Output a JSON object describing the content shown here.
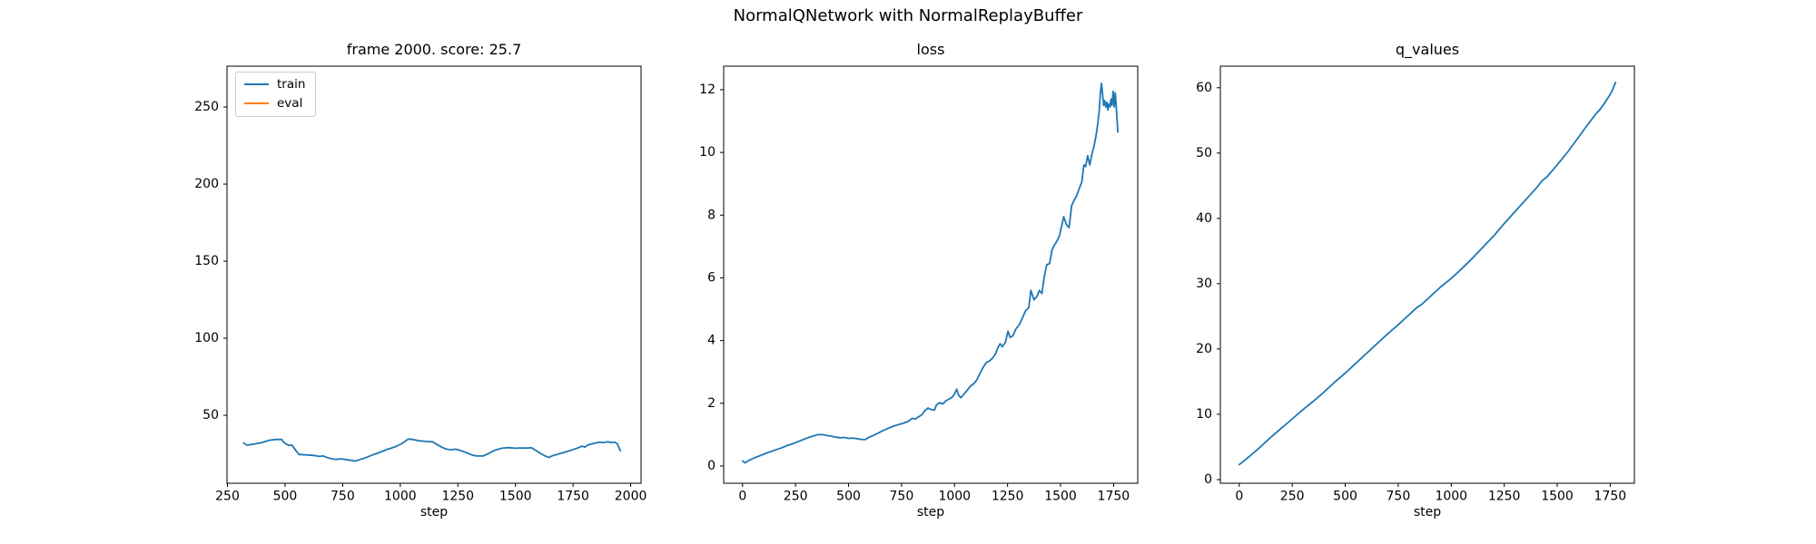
{
  "figure": {
    "suptitle": "NormalQNetwork with NormalReplayBuffer",
    "background_color": "#ffffff",
    "text_color": "#000000",
    "spine_color": "#000000",
    "accent_blue": "#1f77b4",
    "accent_orange": "#ff7f0e"
  },
  "chart_data": [
    {
      "type": "line",
      "title": "frame 2000. score: 25.7",
      "xlabel": "step",
      "grid": false,
      "xlim": [
        248,
        2045
      ],
      "ylim": [
        5.9,
        276.5
      ],
      "xticks": [
        250,
        500,
        750,
        1000,
        1250,
        1500,
        1750,
        2000
      ],
      "yticks": [
        50,
        100,
        150,
        200,
        250
      ],
      "legend": {
        "position": "upper-left",
        "entries": [
          {
            "label": "train",
            "color": "#1f77b4"
          },
          {
            "label": "eval",
            "color": "#ff7f0e"
          }
        ]
      },
      "series": [
        {
          "name": "train",
          "color": "#1f77b4",
          "points": [
            [
              320,
              32.0
            ],
            [
              335,
              30.6
            ],
            [
              365,
              31.3
            ],
            [
              400,
              32.3
            ],
            [
              430,
              33.8
            ],
            [
              460,
              34.3
            ],
            [
              485,
              34.4
            ],
            [
              495,
              32.3
            ],
            [
              515,
              30.5
            ],
            [
              530,
              30.6
            ],
            [
              545,
              27.5
            ],
            [
              560,
              24.6
            ],
            [
              590,
              24.3
            ],
            [
              620,
              24.0
            ],
            [
              650,
              23.3
            ],
            [
              665,
              23.6
            ],
            [
              690,
              22.2
            ],
            [
              720,
              21.4
            ],
            [
              745,
              21.7
            ],
            [
              775,
              21.0
            ],
            [
              805,
              20.3
            ],
            [
              820,
              21.0
            ],
            [
              850,
              22.5
            ],
            [
              880,
              24.3
            ],
            [
              905,
              25.6
            ],
            [
              920,
              26.5
            ],
            [
              940,
              27.7
            ],
            [
              960,
              28.6
            ],
            [
              985,
              30.0
            ],
            [
              1005,
              31.5
            ],
            [
              1020,
              33.0
            ],
            [
              1035,
              34.6
            ],
            [
              1055,
              34.3
            ],
            [
              1080,
              33.5
            ],
            [
              1110,
              33.0
            ],
            [
              1140,
              32.8
            ],
            [
              1160,
              31.0
            ],
            [
              1180,
              29.3
            ],
            [
              1200,
              28.0
            ],
            [
              1220,
              27.6
            ],
            [
              1240,
              28.0
            ],
            [
              1260,
              27.2
            ],
            [
              1290,
              25.6
            ],
            [
              1310,
              24.3
            ],
            [
              1330,
              23.6
            ],
            [
              1360,
              23.6
            ],
            [
              1385,
              25.3
            ],
            [
              1410,
              27.3
            ],
            [
              1440,
              28.6
            ],
            [
              1470,
              29.0
            ],
            [
              1500,
              28.6
            ],
            [
              1520,
              28.8
            ],
            [
              1545,
              28.7
            ],
            [
              1570,
              28.9
            ],
            [
              1585,
              27.5
            ],
            [
              1600,
              26.0
            ],
            [
              1625,
              23.9
            ],
            [
              1645,
              22.6
            ],
            [
              1660,
              23.7
            ],
            [
              1690,
              25.0
            ],
            [
              1720,
              26.3
            ],
            [
              1745,
              27.5
            ],
            [
              1770,
              28.8
            ],
            [
              1790,
              30.0
            ],
            [
              1800,
              29.3
            ],
            [
              1815,
              30.7
            ],
            [
              1840,
              31.8
            ],
            [
              1865,
              32.6
            ],
            [
              1880,
              32.2
            ],
            [
              1900,
              32.8
            ],
            [
              1915,
              32.3
            ],
            [
              1930,
              32.6
            ],
            [
              1942,
              31.5
            ],
            [
              1955,
              27.0
            ]
          ]
        },
        {
          "name": "eval",
          "color": "#ff7f0e",
          "points": []
        }
      ]
    },
    {
      "type": "line",
      "title": "loss",
      "xlabel": "step",
      "grid": false,
      "xlim": [
        -89,
        1864
      ],
      "ylim": [
        -0.55,
        12.75
      ],
      "xticks": [
        0,
        250,
        500,
        750,
        1000,
        1250,
        1500,
        1750
      ],
      "yticks": [
        0,
        2,
        4,
        6,
        8,
        10,
        12
      ],
      "series": [
        {
          "name": "loss",
          "color": "#1f77b4",
          "points": [
            [
              0,
              0.16
            ],
            [
              12,
              0.1
            ],
            [
              30,
              0.18
            ],
            [
              60,
              0.27
            ],
            [
              90,
              0.35
            ],
            [
              120,
              0.43
            ],
            [
              150,
              0.5
            ],
            [
              180,
              0.57
            ],
            [
              210,
              0.65
            ],
            [
              240,
              0.72
            ],
            [
              270,
              0.8
            ],
            [
              300,
              0.88
            ],
            [
              330,
              0.95
            ],
            [
              355,
              1.0
            ],
            [
              380,
              1.0
            ],
            [
              400,
              0.97
            ],
            [
              420,
              0.95
            ],
            [
              440,
              0.92
            ],
            [
              460,
              0.9
            ],
            [
              480,
              0.91
            ],
            [
              500,
              0.88
            ],
            [
              520,
              0.89
            ],
            [
              540,
              0.87
            ],
            [
              560,
              0.85
            ],
            [
              578,
              0.84
            ],
            [
              595,
              0.91
            ],
            [
              615,
              0.97
            ],
            [
              640,
              1.05
            ],
            [
              660,
              1.12
            ],
            [
              680,
              1.18
            ],
            [
              700,
              1.24
            ],
            [
              720,
              1.29
            ],
            [
              740,
              1.33
            ],
            [
              760,
              1.37
            ],
            [
              780,
              1.42
            ],
            [
              800,
              1.52
            ],
            [
              815,
              1.5
            ],
            [
              830,
              1.57
            ],
            [
              845,
              1.63
            ],
            [
              860,
              1.77
            ],
            [
              875,
              1.85
            ],
            [
              890,
              1.8
            ],
            [
              905,
              1.78
            ],
            [
              915,
              1.95
            ],
            [
              930,
              2.02
            ],
            [
              945,
              1.98
            ],
            [
              960,
              2.08
            ],
            [
              975,
              2.14
            ],
            [
              990,
              2.2
            ],
            [
              1000,
              2.3
            ],
            [
              1010,
              2.45
            ],
            [
              1020,
              2.25
            ],
            [
              1030,
              2.18
            ],
            [
              1045,
              2.3
            ],
            [
              1060,
              2.42
            ],
            [
              1075,
              2.55
            ],
            [
              1090,
              2.62
            ],
            [
              1105,
              2.75
            ],
            [
              1120,
              2.95
            ],
            [
              1135,
              3.15
            ],
            [
              1150,
              3.3
            ],
            [
              1165,
              3.35
            ],
            [
              1180,
              3.45
            ],
            [
              1195,
              3.6
            ],
            [
              1205,
              3.78
            ],
            [
              1215,
              3.9
            ],
            [
              1225,
              3.8
            ],
            [
              1240,
              3.95
            ],
            [
              1252,
              4.3
            ],
            [
              1262,
              4.1
            ],
            [
              1275,
              4.15
            ],
            [
              1290,
              4.38
            ],
            [
              1305,
              4.5
            ],
            [
              1320,
              4.72
            ],
            [
              1335,
              4.95
            ],
            [
              1350,
              5.05
            ],
            [
              1360,
              5.6
            ],
            [
              1375,
              5.3
            ],
            [
              1390,
              5.42
            ],
            [
              1400,
              5.6
            ],
            [
              1412,
              5.5
            ],
            [
              1422,
              6.0
            ],
            [
              1435,
              6.42
            ],
            [
              1448,
              6.45
            ],
            [
              1460,
              6.9
            ],
            [
              1472,
              7.05
            ],
            [
              1485,
              7.2
            ],
            [
              1495,
              7.35
            ],
            [
              1505,
              7.65
            ],
            [
              1515,
              7.95
            ],
            [
              1528,
              7.7
            ],
            [
              1540,
              7.6
            ],
            [
              1552,
              8.3
            ],
            [
              1562,
              8.45
            ],
            [
              1575,
              8.6
            ],
            [
              1588,
              8.85
            ],
            [
              1600,
              9.05
            ],
            [
              1610,
              9.6
            ],
            [
              1618,
              9.55
            ],
            [
              1628,
              9.9
            ],
            [
              1638,
              9.6
            ],
            [
              1648,
              9.95
            ],
            [
              1658,
              10.2
            ],
            [
              1668,
              10.55
            ],
            [
              1675,
              10.9
            ],
            [
              1682,
              11.3
            ],
            [
              1688,
              11.9
            ],
            [
              1693,
              12.2
            ],
            [
              1698,
              11.9
            ],
            [
              1703,
              11.5
            ],
            [
              1708,
              11.65
            ],
            [
              1713,
              11.45
            ],
            [
              1718,
              11.6
            ],
            [
              1723,
              11.35
            ],
            [
              1728,
              11.55
            ],
            [
              1733,
              11.45
            ],
            [
              1738,
              11.7
            ],
            [
              1743,
              11.5
            ],
            [
              1748,
              11.95
            ],
            [
              1753,
              11.45
            ],
            [
              1758,
              11.9
            ],
            [
              1764,
              11.3
            ],
            [
              1770,
              10.65
            ]
          ]
        }
      ]
    },
    {
      "type": "line",
      "title": "q_values",
      "xlabel": "step",
      "grid": false,
      "xlim": [
        -89,
        1864
      ],
      "ylim": [
        -0.56,
        63.3
      ],
      "xticks": [
        0,
        250,
        500,
        750,
        1000,
        1250,
        1500,
        1750
      ],
      "yticks": [
        0,
        10,
        20,
        30,
        40,
        50,
        60
      ],
      "series": [
        {
          "name": "q_values",
          "color": "#1f77b4",
          "points": [
            [
              0,
              2.3
            ],
            [
              50,
              3.6
            ],
            [
              100,
              5.0
            ],
            [
              150,
              6.5
            ],
            [
              200,
              7.9
            ],
            [
              250,
              9.3
            ],
            [
              300,
              10.7
            ],
            [
              350,
              12.0
            ],
            [
              400,
              13.4
            ],
            [
              450,
              14.9
            ],
            [
              500,
              16.3
            ],
            [
              550,
              17.8
            ],
            [
              600,
              19.3
            ],
            [
              650,
              20.8
            ],
            [
              700,
              22.3
            ],
            [
              750,
              23.7
            ],
            [
              800,
              25.2
            ],
            [
              840,
              26.4
            ],
            [
              860,
              26.8
            ],
            [
              900,
              28.0
            ],
            [
              950,
              29.5
            ],
            [
              1000,
              30.8
            ],
            [
              1050,
              32.3
            ],
            [
              1100,
              33.9
            ],
            [
              1150,
              35.6
            ],
            [
              1200,
              37.3
            ],
            [
              1250,
              39.2
            ],
            [
              1300,
              41.0
            ],
            [
              1350,
              42.8
            ],
            [
              1400,
              44.6
            ],
            [
              1430,
              45.8
            ],
            [
              1450,
              46.3
            ],
            [
              1500,
              48.2
            ],
            [
              1550,
              50.2
            ],
            [
              1600,
              52.4
            ],
            [
              1620,
              53.3
            ],
            [
              1650,
              54.6
            ],
            [
              1680,
              55.9
            ],
            [
              1700,
              56.6
            ],
            [
              1720,
              57.5
            ],
            [
              1750,
              59.0
            ],
            [
              1760,
              59.6
            ],
            [
              1775,
              60.8
            ]
          ]
        }
      ]
    }
  ]
}
